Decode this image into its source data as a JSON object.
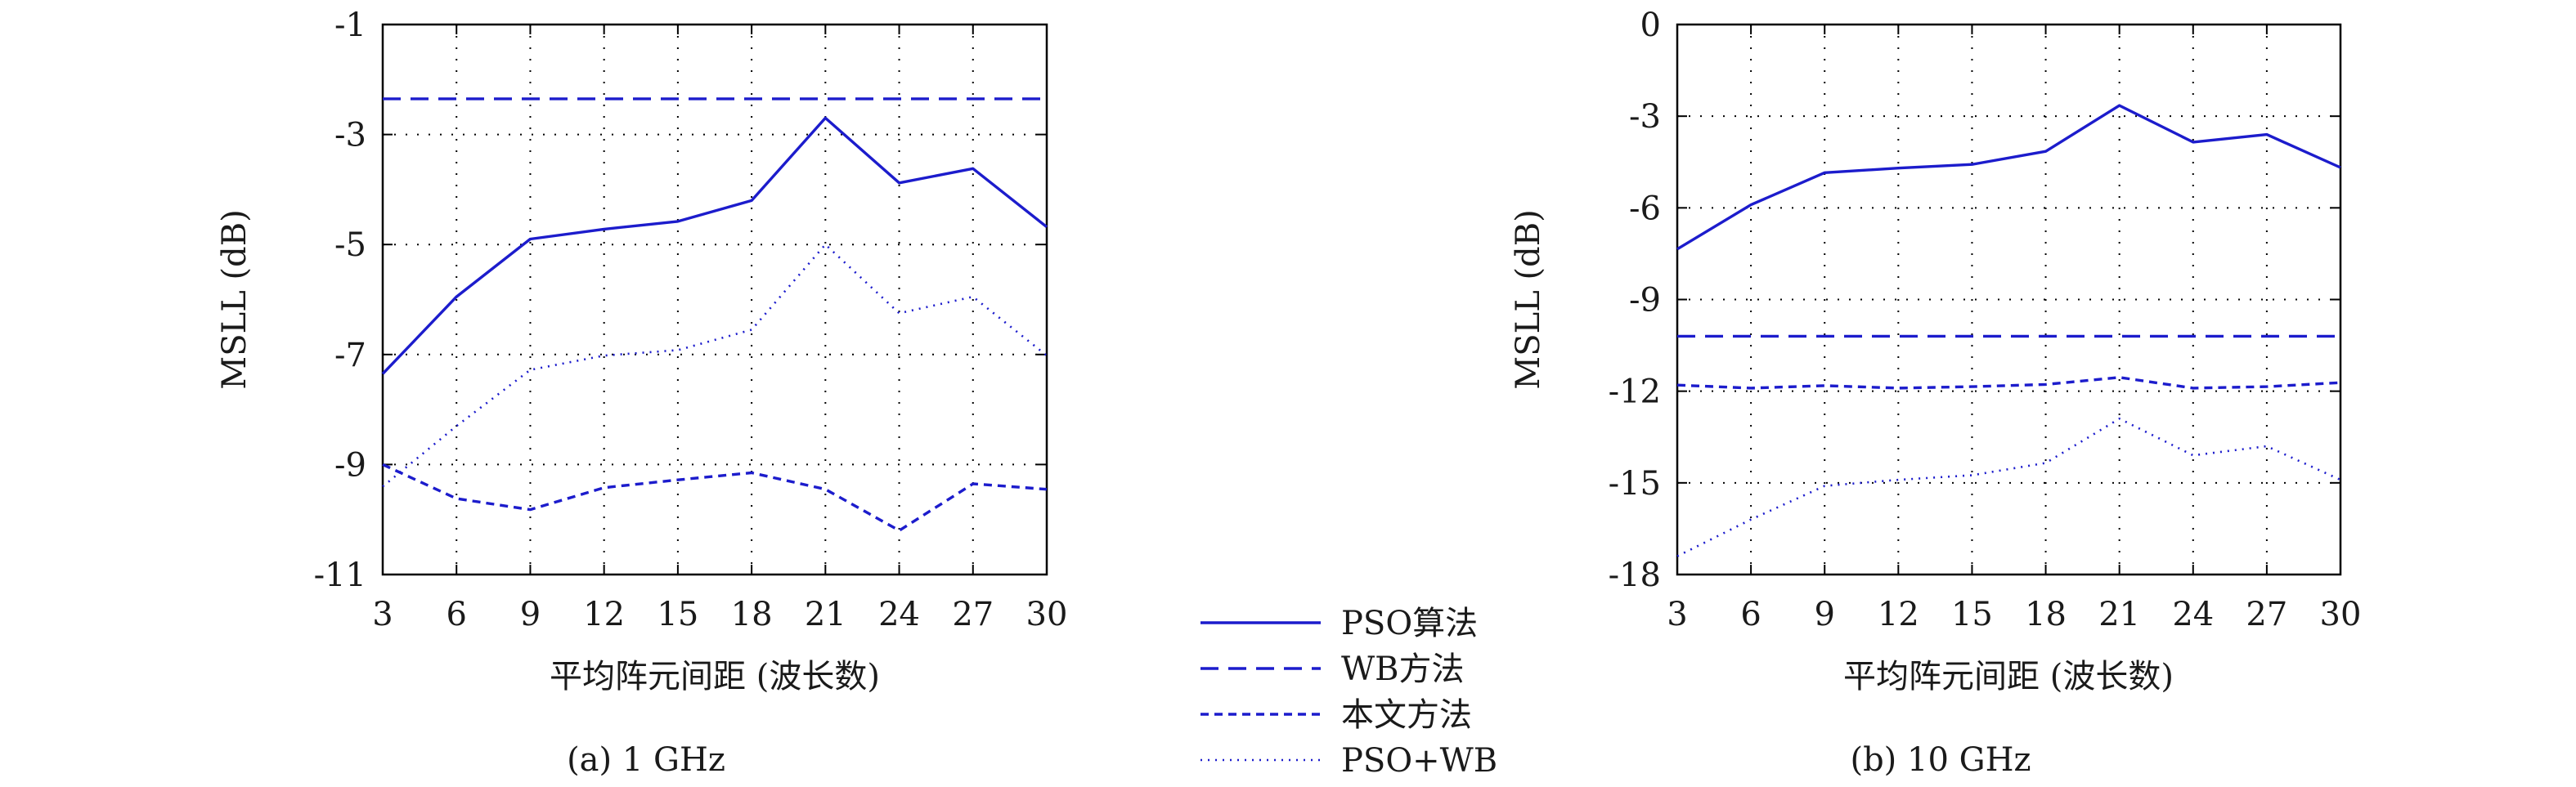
{
  "chart_data": [
    {
      "type": "line",
      "caption": "(a) 1 GHz",
      "xlabel": "平均阵元间距 (波长数)",
      "ylabel": "MSLL (dB)",
      "x": [
        3,
        6,
        9,
        12,
        15,
        18,
        21,
        24,
        27,
        30
      ],
      "x_ticks": [
        "3",
        "6",
        "9",
        "12",
        "15",
        "18",
        "21",
        "24",
        "27",
        "30"
      ],
      "y_ticks": [
        "-1",
        "-3",
        "-5",
        "-7",
        "-9",
        "-11"
      ],
      "xlim": [
        3,
        30
      ],
      "ylim": [
        -11,
        -1
      ],
      "grid": true,
      "series": [
        {
          "name": "PSO算法",
          "style": "solid",
          "values": [
            -7.35,
            -5.95,
            -4.9,
            -4.72,
            -4.58,
            -4.2,
            -2.7,
            -3.88,
            -3.62,
            -4.68
          ]
        },
        {
          "name": "WB方法",
          "style": "dashed",
          "values": [
            -2.35,
            -2.35,
            -2.35,
            -2.35,
            -2.35,
            -2.35,
            -2.35,
            -2.35,
            -2.35,
            -2.35
          ]
        },
        {
          "name": "本文方法",
          "style": "short-dashed",
          "values": [
            -9.0,
            -9.62,
            -9.82,
            -9.42,
            -9.28,
            -9.15,
            -9.45,
            -10.2,
            -9.35,
            -9.45
          ]
        },
        {
          "name": "PSO+WB",
          "style": "dotted",
          "values": [
            -9.4,
            -8.3,
            -7.28,
            -7.02,
            -6.92,
            -6.55,
            -5.0,
            -6.25,
            -5.95,
            -7.02
          ]
        }
      ]
    },
    {
      "type": "line",
      "caption": "(b) 10 GHz",
      "xlabel": "平均阵元间距 (波长数)",
      "ylabel": "MSLL (dB)",
      "x": [
        3,
        6,
        9,
        12,
        15,
        18,
        21,
        24,
        27,
        30
      ],
      "x_ticks": [
        "3",
        "6",
        "9",
        "12",
        "15",
        "18",
        "21",
        "24",
        "27",
        "30"
      ],
      "y_ticks": [
        "0",
        "-3",
        "-6",
        "-9",
        "-12",
        "-15",
        "-18"
      ],
      "xlim": [
        3,
        30
      ],
      "ylim": [
        -18,
        0
      ],
      "grid": true,
      "series": [
        {
          "name": "PSO算法",
          "style": "solid",
          "values": [
            -7.35,
            -5.9,
            -4.85,
            -4.7,
            -4.58,
            -4.15,
            -2.65,
            -3.85,
            -3.6,
            -4.68
          ]
        },
        {
          "name": "WB方法",
          "style": "dashed",
          "values": [
            -10.2,
            -10.2,
            -10.2,
            -10.2,
            -10.2,
            -10.2,
            -10.2,
            -10.2,
            -10.2,
            -10.2
          ]
        },
        {
          "name": "本文方法",
          "style": "short-dashed",
          "values": [
            -11.8,
            -11.9,
            -11.82,
            -11.9,
            -11.85,
            -11.78,
            -11.55,
            -11.9,
            -11.85,
            -11.72
          ]
        },
        {
          "name": "PSO+WB",
          "style": "dotted",
          "values": [
            -17.4,
            -16.2,
            -15.1,
            -14.9,
            -14.75,
            -14.35,
            -12.9,
            -14.1,
            -13.8,
            -14.9
          ]
        }
      ]
    }
  ],
  "legend": {
    "items": [
      {
        "label": "PSO算法",
        "style": "solid"
      },
      {
        "label": "WB方法",
        "style": "dashed"
      },
      {
        "label": "本文方法",
        "style": "short-dashed"
      },
      {
        "label": "PSO+WB",
        "style": "dotted"
      }
    ]
  },
  "colors": {
    "line": "#1c1ccc",
    "axis": "#000000",
    "grid": "#000000"
  }
}
